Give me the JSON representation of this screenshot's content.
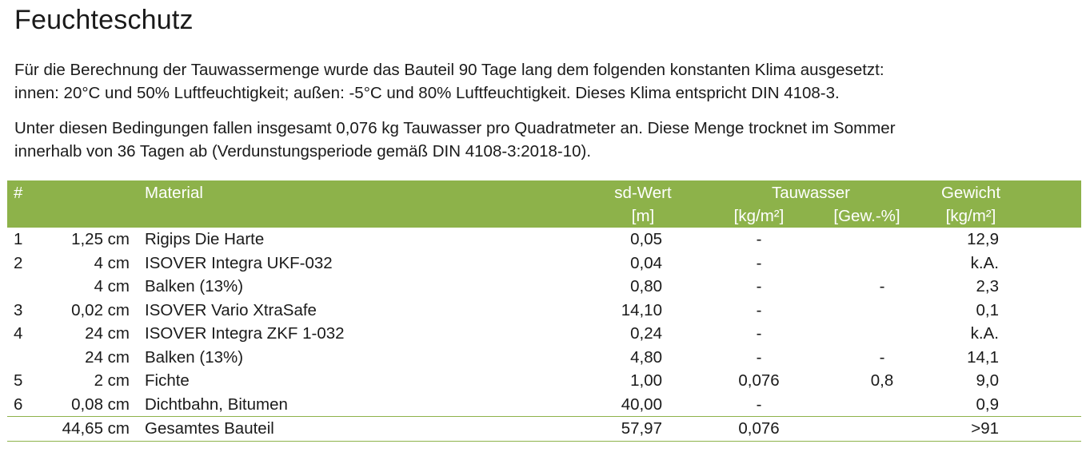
{
  "title": "Feuchteschutz",
  "paragraphs": {
    "p1_line1": "Für die Berechnung der Tauwassermenge wurde das Bauteil 90 Tage lang dem folgenden konstanten Klima ausgesetzt:",
    "p1_line2": "innen: 20°C und 50% Luftfeuchtigkeit; außen: -5°C und 80% Luftfeuchtigkeit. Dieses Klima entspricht DIN 4108-3.",
    "p2_line1": "Unter diesen Bedingungen fallen insgesamt 0,076 kg Tauwasser pro Quadratmeter an. Diese Menge trocknet im Sommer",
    "p2_line2": "innerhalb von 36 Tagen ab (Verdunstungsperiode gemäß DIN 4108-3:2018-10)."
  },
  "header": {
    "num": "#",
    "material": "Material",
    "sd": "sd-Wert",
    "sd_unit": "[m]",
    "tauwasser": "Tauwasser",
    "tw_unit1": "[kg/m²]",
    "tw_unit2": "[Gew.-%]",
    "gewicht": "Gewicht",
    "gew_unit": "[kg/m²]"
  },
  "rows": [
    {
      "num": "1",
      "thickness": "1,25 cm",
      "material": "Rigips Die Harte",
      "sd": "0,05",
      "tw_kg": "-",
      "tw_pct": "",
      "weight": "12,9"
    },
    {
      "num": "2",
      "thickness": "4 cm",
      "material": "ISOVER Integra UKF-032",
      "sd": "0,04",
      "tw_kg": "-",
      "tw_pct": "",
      "weight": "k.A."
    },
    {
      "num": "",
      "thickness": "4 cm",
      "material": "Balken (13%)",
      "sd": "0,80",
      "tw_kg": "-",
      "tw_pct": "-",
      "weight": "2,3"
    },
    {
      "num": "3",
      "thickness": "0,02 cm",
      "material": "ISOVER Vario XtraSafe",
      "sd": "14,10",
      "tw_kg": "-",
      "tw_pct": "",
      "weight": "0,1"
    },
    {
      "num": "4",
      "thickness": "24 cm",
      "material": "ISOVER Integra ZKF 1-032",
      "sd": "0,24",
      "tw_kg": "-",
      "tw_pct": "",
      "weight": "k.A."
    },
    {
      "num": "",
      "thickness": "24 cm",
      "material": "Balken (13%)",
      "sd": "4,80",
      "tw_kg": "-",
      "tw_pct": "-",
      "weight": "14,1"
    },
    {
      "num": "5",
      "thickness": "2 cm",
      "material": "Fichte",
      "sd": "1,00",
      "tw_kg": "0,076",
      "tw_pct": "0,8",
      "weight": "9,0"
    },
    {
      "num": "6",
      "thickness": "0,08 cm",
      "material": "Dichtbahn, Bitumen",
      "sd": "40,00",
      "tw_kg": "-",
      "tw_pct": "",
      "weight": "0,9"
    }
  ],
  "total": {
    "thickness": "44,65 cm",
    "material": "Gesamtes Bauteil",
    "sd": "57,97",
    "tw_kg": "0,076",
    "tw_pct": "",
    "weight": ">91"
  },
  "colors": {
    "header_bg": "#8db24a",
    "header_text": "#ffffff",
    "rule": "#8db24a"
  }
}
